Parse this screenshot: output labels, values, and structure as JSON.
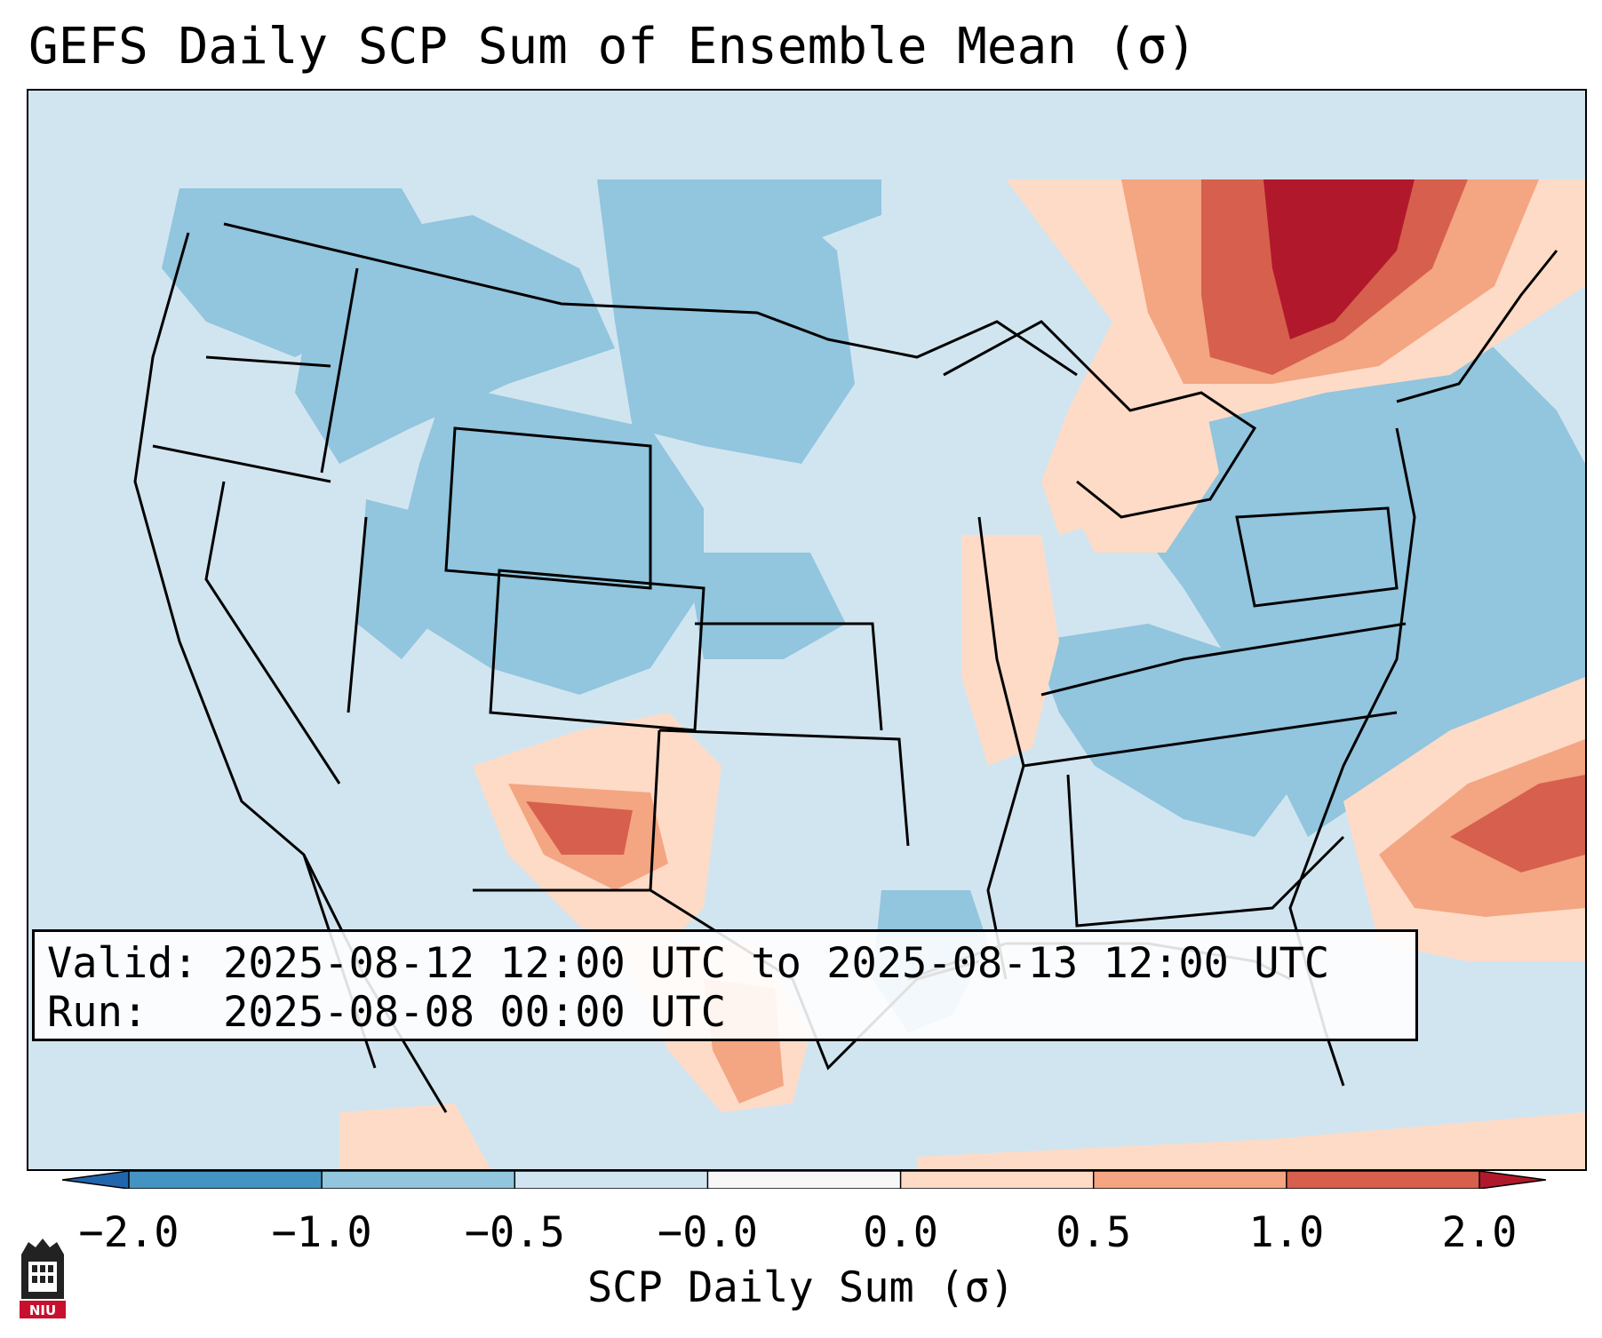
{
  "title": "GEFS Daily SCP Sum of Ensemble Mean (σ)",
  "info": {
    "valid_label": "Valid:",
    "valid_text": "2025-08-12 12:00 UTC to 2025-08-13 12:00 UTC",
    "run_label": "Run:",
    "run_text": "2025-08-08 00:00 UTC"
  },
  "colorbar": {
    "label": "SCP Daily Sum (σ)",
    "ticks": [
      "−2.0",
      "−1.0",
      "−0.5",
      "−0.0",
      "0.0",
      "0.5",
      "1.0",
      "2.0"
    ],
    "bins": [
      {
        "from": "-2.0",
        "to": "-1.0",
        "color": "#4393c3"
      },
      {
        "from": "-1.0",
        "to": "-0.5",
        "color": "#92c5de"
      },
      {
        "from": "-0.5",
        "to": "-0.0",
        "color": "#d1e5f0"
      },
      {
        "from": "-0.0",
        "to": "0.0",
        "color": "#f7f7f7"
      },
      {
        "from": "0.0",
        "to": "0.5",
        "color": "#fddbc7"
      },
      {
        "from": "0.5",
        "to": "1.0",
        "color": "#f4a582"
      },
      {
        "from": "1.0",
        "to": "2.0",
        "color": "#d6604d"
      }
    ],
    "under_color": "#2166ac",
    "over_color": "#b2182b"
  },
  "logo": {
    "text": "NIU",
    "color": "#c8102e"
  },
  "map": {
    "background": "#d1e5f0",
    "blob_colors": {
      "neg1": "#92c5de",
      "pos1": "#fddbc7",
      "pos2": "#f4a582",
      "pos3": "#d6604d",
      "pos4": "#b2182b"
    },
    "line_color": "#000000"
  }
}
